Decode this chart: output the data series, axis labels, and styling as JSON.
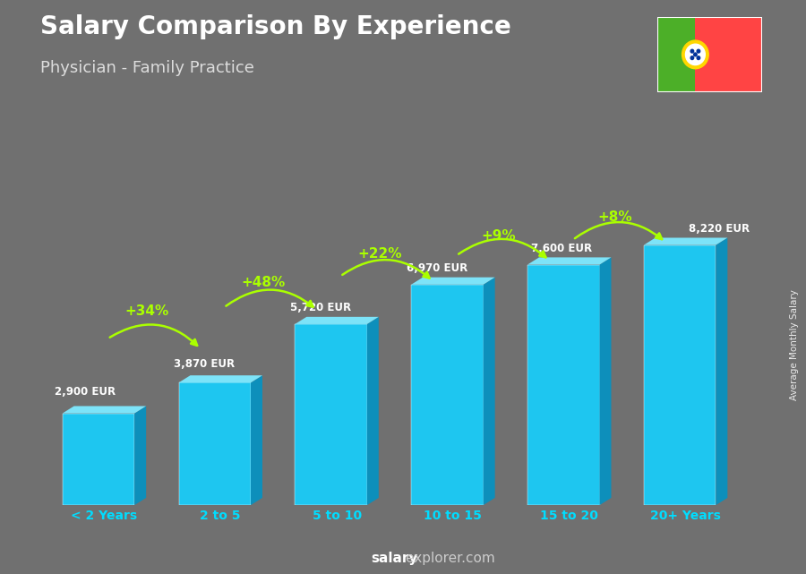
{
  "title": "Salary Comparison By Experience",
  "subtitle": "Physician - Family Practice",
  "categories": [
    "< 2 Years",
    "2 to 5",
    "5 to 10",
    "10 to 15",
    "15 to 20",
    "20+ Years"
  ],
  "values": [
    2900,
    3870,
    5720,
    6970,
    7600,
    8220
  ],
  "labels": [
    "2,900 EUR",
    "3,870 EUR",
    "5,720 EUR",
    "6,970 EUR",
    "7,600 EUR",
    "8,220 EUR"
  ],
  "pct_changes": [
    "+34%",
    "+48%",
    "+22%",
    "+9%",
    "+8%"
  ],
  "bar_color_face": "#1EC6F0",
  "bar_color_side": "#0D8FBB",
  "bar_color_top": "#7DE3F8",
  "background_color": "#707070",
  "title_color": "#FFFFFF",
  "subtitle_color": "#DDDDDD",
  "label_color": "#FFFFFF",
  "pct_color": "#AAFF00",
  "cat_color": "#00DDFF",
  "watermark_salary_color": "#FFFFFF",
  "watermark_explorer_color": "#BBBBBB",
  "ylabel": "Average Monthly Salary",
  "fig_width": 9.0,
  "fig_height": 6.41,
  "flag_green": "#4CAF28",
  "flag_red": "#FF4444",
  "flag_gold": "#FFD700"
}
